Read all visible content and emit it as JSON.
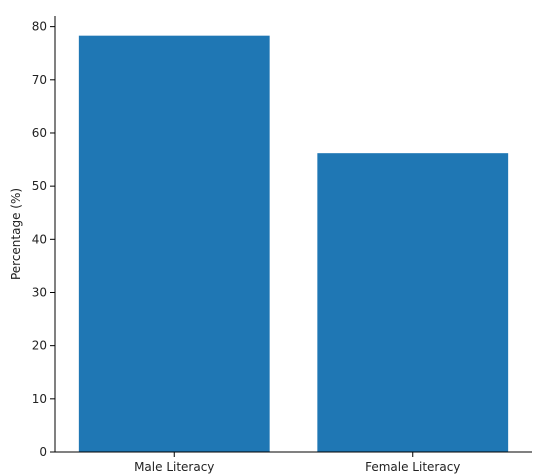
{
  "chart_data": {
    "type": "bar",
    "categories": [
      "Male Literacy",
      "Female Literacy"
    ],
    "values": [
      78.3,
      56.2
    ],
    "title": "",
    "xlabel": "",
    "ylabel": "Percentage (%)",
    "ylim": [
      0,
      82
    ],
    "yticks": [
      0,
      10,
      20,
      30,
      40,
      50,
      60,
      70,
      80
    ],
    "ytick_labels": [
      "0",
      "10",
      "20",
      "30",
      "40",
      "50",
      "60",
      "70",
      "80"
    ],
    "grid": false,
    "bar_color": "#1f77b4",
    "axis_color": "#000000"
  }
}
